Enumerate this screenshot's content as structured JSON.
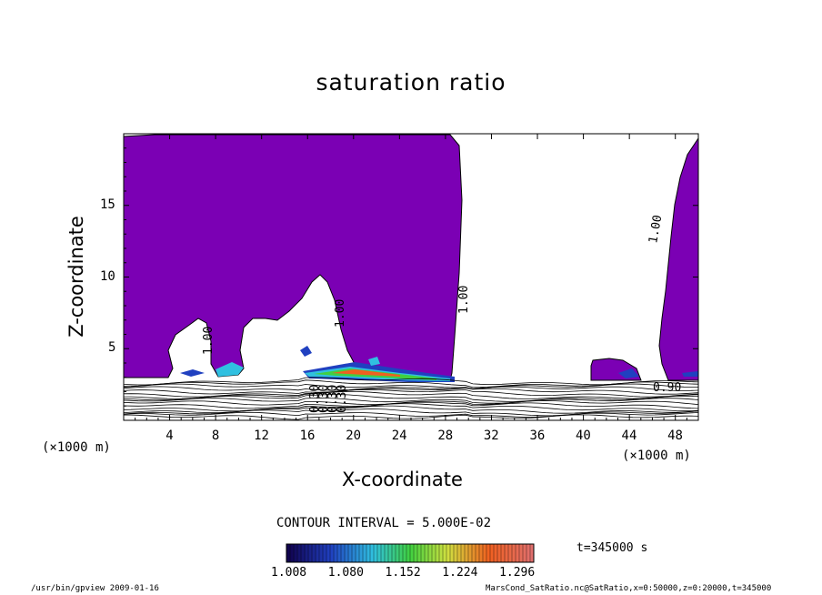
{
  "chart_data": {
    "type": "heatmap",
    "title": "saturation ratio",
    "xlabel": "X-coordinate",
    "ylabel": "Z-coordinate",
    "x_units": "(×1000 m)",
    "xlim": [
      0,
      50
    ],
    "ylim": [
      0,
      20
    ],
    "x_ticks": [
      "4",
      "8",
      "12",
      "16",
      "20",
      "24",
      "28",
      "32",
      "36",
      "40",
      "44",
      "48"
    ],
    "y_ticks": [
      "5",
      "10",
      "15"
    ],
    "contour_labels": [
      "1.00",
      "1.00",
      "1.00",
      "1.00",
      "0.30",
      "0.30",
      "0.30",
      "0.30",
      "0.90"
    ],
    "contour_interval": "CONTOUR INTERVAL = 5.000E-02",
    "colorbar": {
      "ticks": [
        "1.008",
        "1.080",
        "1.152",
        "1.224",
        "1.296"
      ],
      "range": [
        1.008,
        1.32
      ]
    },
    "time": "t=345000 s",
    "colors": {
      "supersaturated_fill": "#7b00b4",
      "background": "#ffffff"
    }
  },
  "footer": {
    "left": "/usr/bin/gpview   2009-01-16",
    "right": "MarsCond_SatRatio.nc@SatRatio,x=0:50000,z=0:20000,t=345000"
  }
}
